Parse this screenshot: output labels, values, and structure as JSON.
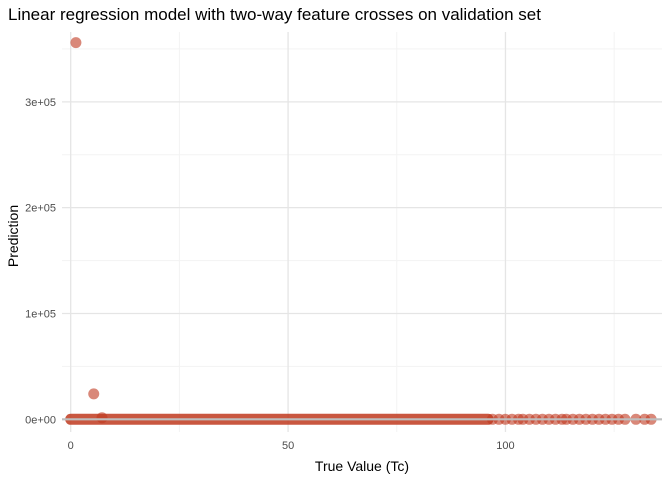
{
  "chart_data": {
    "type": "scatter",
    "title": "Linear regression model with two-way feature crosses on validation set",
    "xlabel": "True Value (Tc)",
    "ylabel": "Prediction",
    "xlim": [
      -2,
      136
    ],
    "ylim": [
      -12000,
      366000
    ],
    "x_ticks": [
      0,
      50,
      100
    ],
    "x_tick_labels": [
      "0",
      "50",
      "100"
    ],
    "y_ticks": [
      0,
      100000,
      200000,
      300000
    ],
    "y_tick_labels": [
      "0e+00",
      "1e+05",
      "2e+05",
      "3e+05"
    ],
    "grid": true,
    "legend": "none",
    "point_color": "#c0391f",
    "line_color": "#bebebe",
    "reference_line": {
      "type": "hline",
      "y": 0
    },
    "dense_band": {
      "x_from": 0,
      "x_to": 96,
      "y": 0
    },
    "points": [
      {
        "x": 1.2,
        "y": 356000
      },
      {
        "x": 5.3,
        "y": 24000
      },
      {
        "x": 7.2,
        "y": 1500
      },
      {
        "x": 97,
        "y": 0
      },
      {
        "x": 98.5,
        "y": 0
      },
      {
        "x": 100,
        "y": 0
      },
      {
        "x": 101.5,
        "y": 0
      },
      {
        "x": 103,
        "y": 0
      },
      {
        "x": 104,
        "y": 0
      },
      {
        "x": 105.5,
        "y": 0
      },
      {
        "x": 107,
        "y": 0
      },
      {
        "x": 108.5,
        "y": 0
      },
      {
        "x": 110,
        "y": 0
      },
      {
        "x": 111.5,
        "y": 0
      },
      {
        "x": 113,
        "y": 0
      },
      {
        "x": 114,
        "y": 0
      },
      {
        "x": 115.5,
        "y": 0
      },
      {
        "x": 117,
        "y": 0
      },
      {
        "x": 118.5,
        "y": 0
      },
      {
        "x": 120,
        "y": 0
      },
      {
        "x": 121.5,
        "y": 0
      },
      {
        "x": 123,
        "y": 0
      },
      {
        "x": 124.5,
        "y": 0
      },
      {
        "x": 126,
        "y": 0
      },
      {
        "x": 127.5,
        "y": 0
      },
      {
        "x": 130,
        "y": 0
      },
      {
        "x": 132,
        "y": 0
      },
      {
        "x": 133.5,
        "y": 0
      }
    ]
  }
}
